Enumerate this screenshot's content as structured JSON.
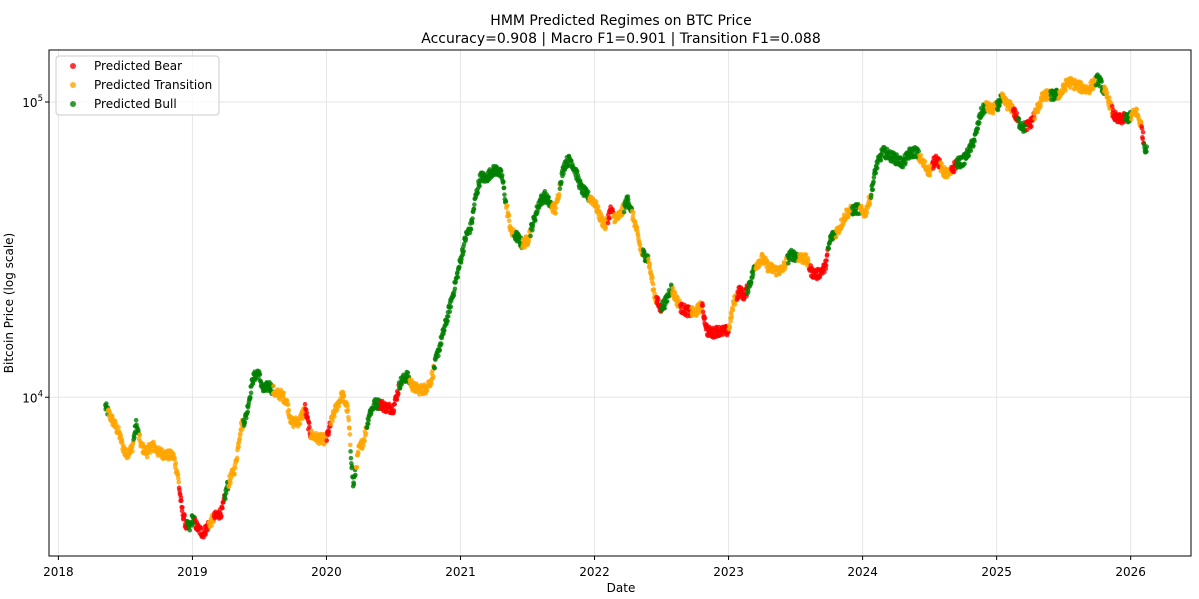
{
  "chart_data": {
    "type": "scatter",
    "title": "HMM Predicted Regimes on BTC Price",
    "subtitle": "Accuracy=0.908 | Macro F1=0.901 | Transition F1=0.088",
    "xlabel": "Date",
    "ylabel": "Bitcoin Price (log scale)",
    "yscale": "log",
    "xlim": [
      2017.93,
      2026.45
    ],
    "ylim": [
      2900,
      150000
    ],
    "x_ticks": [
      2018,
      2019,
      2020,
      2021,
      2022,
      2023,
      2024,
      2025,
      2026
    ],
    "x_tick_labels": [
      "2018",
      "2019",
      "2020",
      "2021",
      "2022",
      "2023",
      "2024",
      "2025",
      "2026"
    ],
    "y_ticks": [
      {
        "value": 10000,
        "base": "10",
        "exp": "4"
      },
      {
        "value": 100000,
        "base": "10",
        "exp": "5"
      }
    ],
    "grid": true,
    "legend_position": "upper-left",
    "series": [
      {
        "name": "Predicted Bear",
        "color": "#ff0000"
      },
      {
        "name": "Predicted Transition",
        "color": "#ffa500"
      },
      {
        "name": "Predicted Bull",
        "color": "#008000"
      }
    ],
    "price_path": [
      [
        2018.35,
        9300
      ],
      [
        2018.4,
        8400
      ],
      [
        2018.45,
        7600
      ],
      [
        2018.5,
        6400
      ],
      [
        2018.55,
        6700
      ],
      [
        2018.58,
        8100
      ],
      [
        2018.62,
        6800
      ],
      [
        2018.66,
        6500
      ],
      [
        2018.7,
        6900
      ],
      [
        2018.75,
        6500
      ],
      [
        2018.8,
        6400
      ],
      [
        2018.86,
        6300
      ],
      [
        2018.89,
        5500
      ],
      [
        2018.92,
        4200
      ],
      [
        2018.95,
        3700
      ],
      [
        2018.98,
        3600
      ],
      [
        2019.0,
        3900
      ],
      [
        2019.04,
        3600
      ],
      [
        2019.08,
        3450
      ],
      [
        2019.12,
        3700
      ],
      [
        2019.16,
        3900
      ],
      [
        2019.22,
        4100
      ],
      [
        2019.26,
        5000
      ],
      [
        2019.32,
        5800
      ],
      [
        2019.36,
        7900
      ],
      [
        2019.4,
        8600
      ],
      [
        2019.45,
        11500
      ],
      [
        2019.49,
        12200
      ],
      [
        2019.53,
        10500
      ],
      [
        2019.57,
        11000
      ],
      [
        2019.62,
        10300
      ],
      [
        2019.66,
        10200
      ],
      [
        2019.7,
        9800
      ],
      [
        2019.74,
        8200
      ],
      [
        2019.8,
        8300
      ],
      [
        2019.84,
        9200
      ],
      [
        2019.88,
        7500
      ],
      [
        2019.92,
        7300
      ],
      [
        2019.96,
        7200
      ],
      [
        2020.0,
        7200
      ],
      [
        2020.04,
        8400
      ],
      [
        2020.08,
        9400
      ],
      [
        2020.12,
        10200
      ],
      [
        2020.16,
        9000
      ],
      [
        2020.2,
        5000
      ],
      [
        2020.24,
        6600
      ],
      [
        2020.28,
        7200
      ],
      [
        2020.32,
        8800
      ],
      [
        2020.36,
        9500
      ],
      [
        2020.4,
        9500
      ],
      [
        2020.45,
        9200
      ],
      [
        2020.5,
        9200
      ],
      [
        2020.55,
        11200
      ],
      [
        2020.6,
        11800
      ],
      [
        2020.65,
        10800
      ],
      [
        2020.7,
        10600
      ],
      [
        2020.74,
        10700
      ],
      [
        2020.78,
        11400
      ],
      [
        2020.82,
        13500
      ],
      [
        2020.86,
        15800
      ],
      [
        2020.9,
        18500
      ],
      [
        2020.95,
        23000
      ],
      [
        2021.0,
        29000
      ],
      [
        2021.04,
        35000
      ],
      [
        2021.08,
        38000
      ],
      [
        2021.11,
        47000
      ],
      [
        2021.15,
        56000
      ],
      [
        2021.19,
        55000
      ],
      [
        2021.23,
        58000
      ],
      [
        2021.27,
        59000
      ],
      [
        2021.31,
        56000
      ],
      [
        2021.34,
        45000
      ],
      [
        2021.38,
        36000
      ],
      [
        2021.42,
        35000
      ],
      [
        2021.46,
        33000
      ],
      [
        2021.5,
        34000
      ],
      [
        2021.55,
        40000
      ],
      [
        2021.59,
        46000
      ],
      [
        2021.63,
        48000
      ],
      [
        2021.67,
        45000
      ],
      [
        2021.71,
        43000
      ],
      [
        2021.75,
        55000
      ],
      [
        2021.78,
        62000
      ],
      [
        2021.82,
        64000
      ],
      [
        2021.86,
        58000
      ],
      [
        2021.9,
        51000
      ],
      [
        2021.95,
        48000
      ],
      [
        2022.0,
        46000
      ],
      [
        2022.04,
        41000
      ],
      [
        2022.08,
        38000
      ],
      [
        2022.12,
        43000
      ],
      [
        2022.16,
        40000
      ],
      [
        2022.2,
        42000
      ],
      [
        2022.25,
        47000
      ],
      [
        2022.3,
        39000
      ],
      [
        2022.35,
        31000
      ],
      [
        2022.4,
        29500
      ],
      [
        2022.45,
        22000
      ],
      [
        2022.49,
        20000
      ],
      [
        2022.53,
        21000
      ],
      [
        2022.57,
        23500
      ],
      [
        2022.61,
        21500
      ],
      [
        2022.65,
        20000
      ],
      [
        2022.7,
        19500
      ],
      [
        2022.75,
        19300
      ],
      [
        2022.8,
        20500
      ],
      [
        2022.84,
        16800
      ],
      [
        2022.88,
        16500
      ],
      [
        2022.92,
        16800
      ],
      [
        2022.96,
        16700
      ],
      [
        2023.0,
        16800
      ],
      [
        2023.04,
        21000
      ],
      [
        2023.08,
        23000
      ],
      [
        2023.12,
        22000
      ],
      [
        2023.16,
        24500
      ],
      [
        2023.2,
        28000
      ],
      [
        2023.25,
        29500
      ],
      [
        2023.3,
        27500
      ],
      [
        2023.36,
        26800
      ],
      [
        2023.4,
        27000
      ],
      [
        2023.46,
        30400
      ],
      [
        2023.52,
        30000
      ],
      [
        2023.58,
        29200
      ],
      [
        2023.62,
        26500
      ],
      [
        2023.66,
        26000
      ],
      [
        2023.72,
        27500
      ],
      [
        2023.76,
        34500
      ],
      [
        2023.82,
        37000
      ],
      [
        2023.88,
        42000
      ],
      [
        2023.92,
        43000
      ],
      [
        2023.96,
        43500
      ],
      [
        2024.02,
        42000
      ],
      [
        2024.06,
        48000
      ],
      [
        2024.1,
        60000
      ],
      [
        2024.15,
        68000
      ],
      [
        2024.2,
        66000
      ],
      [
        2024.25,
        64000
      ],
      [
        2024.3,
        62000
      ],
      [
        2024.35,
        67000
      ],
      [
        2024.4,
        68000
      ],
      [
        2024.45,
        62000
      ],
      [
        2024.5,
        58000
      ],
      [
        2024.55,
        65000
      ],
      [
        2024.6,
        58000
      ],
      [
        2024.65,
        57000
      ],
      [
        2024.7,
        62000
      ],
      [
        2024.75,
        63000
      ],
      [
        2024.8,
        69000
      ],
      [
        2024.84,
        76000
      ],
      [
        2024.88,
        91000
      ],
      [
        2024.92,
        97000
      ],
      [
        2024.96,
        94000
      ],
      [
        2025.0,
        96000
      ],
      [
        2025.04,
        103000
      ],
      [
        2025.08,
        98000
      ],
      [
        2025.12,
        95000
      ],
      [
        2025.16,
        86000
      ],
      [
        2025.2,
        82000
      ],
      [
        2025.25,
        84000
      ],
      [
        2025.3,
        94000
      ],
      [
        2025.34,
        103000
      ],
      [
        2025.38,
        106000
      ],
      [
        2025.42,
        105000
      ],
      [
        2025.48,
        107000
      ],
      [
        2025.53,
        117000
      ],
      [
        2025.58,
        115000
      ],
      [
        2025.63,
        112000
      ],
      [
        2025.68,
        110000
      ],
      [
        2025.72,
        115000
      ],
      [
        2025.76,
        120000
      ],
      [
        2025.79,
        112000
      ],
      [
        2025.83,
        103000
      ],
      [
        2025.87,
        91000
      ],
      [
        2025.9,
        87000
      ],
      [
        2025.95,
        88000
      ],
      [
        2026.0,
        89000
      ],
      [
        2026.04,
        93000
      ],
      [
        2026.08,
        83000
      ],
      [
        2026.1,
        72000
      ],
      [
        2026.12,
        68000
      ]
    ],
    "regime_segments": [
      {
        "from": 2018.34,
        "to": 2018.37,
        "regime": "Predicted Bull"
      },
      {
        "from": 2018.37,
        "to": 2018.56,
        "regime": "Predicted Transition"
      },
      {
        "from": 2018.56,
        "to": 2018.6,
        "regime": "Predicted Bull"
      },
      {
        "from": 2018.6,
        "to": 2018.9,
        "regime": "Predicted Transition"
      },
      {
        "from": 2018.9,
        "to": 2018.96,
        "regime": "Predicted Bear"
      },
      {
        "from": 2018.96,
        "to": 2019.02,
        "regime": "Predicted Bull"
      },
      {
        "from": 2019.02,
        "to": 2019.12,
        "regime": "Predicted Bear"
      },
      {
        "from": 2019.12,
        "to": 2019.16,
        "regime": "Predicted Transition"
      },
      {
        "from": 2019.16,
        "to": 2019.24,
        "regime": "Predicted Bear"
      },
      {
        "from": 2019.24,
        "to": 2019.27,
        "regime": "Predicted Bull"
      },
      {
        "from": 2019.27,
        "to": 2019.38,
        "regime": "Predicted Transition"
      },
      {
        "from": 2019.38,
        "to": 2019.6,
        "regime": "Predicted Bull"
      },
      {
        "from": 2019.6,
        "to": 2019.84,
        "regime": "Predicted Transition"
      },
      {
        "from": 2019.84,
        "to": 2019.88,
        "regime": "Predicted Bear"
      },
      {
        "from": 2019.88,
        "to": 2020.0,
        "regime": "Predicted Transition"
      },
      {
        "from": 2020.0,
        "to": 2020.03,
        "regime": "Predicted Bear"
      },
      {
        "from": 2020.03,
        "to": 2020.18,
        "regime": "Predicted Transition"
      },
      {
        "from": 2020.18,
        "to": 2020.22,
        "regime": "Predicted Bull"
      },
      {
        "from": 2020.22,
        "to": 2020.3,
        "regime": "Predicted Transition"
      },
      {
        "from": 2020.3,
        "to": 2020.4,
        "regime": "Predicted Bull"
      },
      {
        "from": 2020.4,
        "to": 2020.54,
        "regime": "Predicted Bear"
      },
      {
        "from": 2020.54,
        "to": 2020.62,
        "regime": "Predicted Bull"
      },
      {
        "from": 2020.62,
        "to": 2020.8,
        "regime": "Predicted Transition"
      },
      {
        "from": 2020.8,
        "to": 2021.34,
        "regime": "Predicted Bull"
      },
      {
        "from": 2021.34,
        "to": 2021.4,
        "regime": "Predicted Transition"
      },
      {
        "from": 2021.4,
        "to": 2021.46,
        "regime": "Predicted Bull"
      },
      {
        "from": 2021.46,
        "to": 2021.52,
        "regime": "Predicted Transition"
      },
      {
        "from": 2021.52,
        "to": 2021.68,
        "regime": "Predicted Bull"
      },
      {
        "from": 2021.68,
        "to": 2021.74,
        "regime": "Predicted Transition"
      },
      {
        "from": 2021.74,
        "to": 2021.96,
        "regime": "Predicted Bull"
      },
      {
        "from": 2021.96,
        "to": 2022.1,
        "regime": "Predicted Transition"
      },
      {
        "from": 2022.1,
        "to": 2022.14,
        "regime": "Predicted Bear"
      },
      {
        "from": 2022.14,
        "to": 2022.22,
        "regime": "Predicted Transition"
      },
      {
        "from": 2022.22,
        "to": 2022.28,
        "regime": "Predicted Bull"
      },
      {
        "from": 2022.28,
        "to": 2022.36,
        "regime": "Predicted Transition"
      },
      {
        "from": 2022.36,
        "to": 2022.4,
        "regime": "Predicted Bull"
      },
      {
        "from": 2022.4,
        "to": 2022.46,
        "regime": "Predicted Transition"
      },
      {
        "from": 2022.46,
        "to": 2022.5,
        "regime": "Predicted Bear"
      },
      {
        "from": 2022.5,
        "to": 2022.58,
        "regime": "Predicted Bull"
      },
      {
        "from": 2022.58,
        "to": 2022.64,
        "regime": "Predicted Transition"
      },
      {
        "from": 2022.64,
        "to": 2022.72,
        "regime": "Predicted Bear"
      },
      {
        "from": 2022.72,
        "to": 2022.8,
        "regime": "Predicted Transition"
      },
      {
        "from": 2022.8,
        "to": 2023.0,
        "regime": "Predicted Bear"
      },
      {
        "from": 2023.0,
        "to": 2023.06,
        "regime": "Predicted Transition"
      },
      {
        "from": 2023.06,
        "to": 2023.14,
        "regime": "Predicted Bear"
      },
      {
        "from": 2023.14,
        "to": 2023.2,
        "regime": "Predicted Bull"
      },
      {
        "from": 2023.2,
        "to": 2023.44,
        "regime": "Predicted Transition"
      },
      {
        "from": 2023.44,
        "to": 2023.52,
        "regime": "Predicted Bull"
      },
      {
        "from": 2023.52,
        "to": 2023.6,
        "regime": "Predicted Transition"
      },
      {
        "from": 2023.6,
        "to": 2023.74,
        "regime": "Predicted Bear"
      },
      {
        "from": 2023.74,
        "to": 2023.8,
        "regime": "Predicted Bull"
      },
      {
        "from": 2023.8,
        "to": 2023.92,
        "regime": "Predicted Transition"
      },
      {
        "from": 2023.92,
        "to": 2023.98,
        "regime": "Predicted Bull"
      },
      {
        "from": 2023.98,
        "to": 2024.06,
        "regime": "Predicted Transition"
      },
      {
        "from": 2024.06,
        "to": 2024.42,
        "regime": "Predicted Bull"
      },
      {
        "from": 2024.42,
        "to": 2024.52,
        "regime": "Predicted Transition"
      },
      {
        "from": 2024.52,
        "to": 2024.58,
        "regime": "Predicted Bear"
      },
      {
        "from": 2024.58,
        "to": 2024.66,
        "regime": "Predicted Transition"
      },
      {
        "from": 2024.66,
        "to": 2024.7,
        "regime": "Predicted Bear"
      },
      {
        "from": 2024.7,
        "to": 2024.92,
        "regime": "Predicted Bull"
      },
      {
        "from": 2024.92,
        "to": 2025.0,
        "regime": "Predicted Transition"
      },
      {
        "from": 2025.0,
        "to": 2025.04,
        "regime": "Predicted Bull"
      },
      {
        "from": 2025.04,
        "to": 2025.12,
        "regime": "Predicted Transition"
      },
      {
        "from": 2025.12,
        "to": 2025.16,
        "regime": "Predicted Bear"
      },
      {
        "from": 2025.16,
        "to": 2025.22,
        "regime": "Predicted Bull"
      },
      {
        "from": 2025.22,
        "to": 2025.28,
        "regime": "Predicted Bear"
      },
      {
        "from": 2025.28,
        "to": 2025.4,
        "regime": "Predicted Transition"
      },
      {
        "from": 2025.4,
        "to": 2025.46,
        "regime": "Predicted Bull"
      },
      {
        "from": 2025.46,
        "to": 2025.74,
        "regime": "Predicted Transition"
      },
      {
        "from": 2025.74,
        "to": 2025.8,
        "regime": "Predicted Bull"
      },
      {
        "from": 2025.8,
        "to": 2025.86,
        "regime": "Predicted Transition"
      },
      {
        "from": 2025.86,
        "to": 2025.96,
        "regime": "Predicted Bear"
      },
      {
        "from": 2025.96,
        "to": 2026.0,
        "regime": "Predicted Bull"
      },
      {
        "from": 2026.0,
        "to": 2026.08,
        "regime": "Predicted Transition"
      },
      {
        "from": 2026.08,
        "to": 2026.1,
        "regime": "Predicted Bear"
      },
      {
        "from": 2026.1,
        "to": 2026.13,
        "regime": "Predicted Bull"
      }
    ]
  }
}
